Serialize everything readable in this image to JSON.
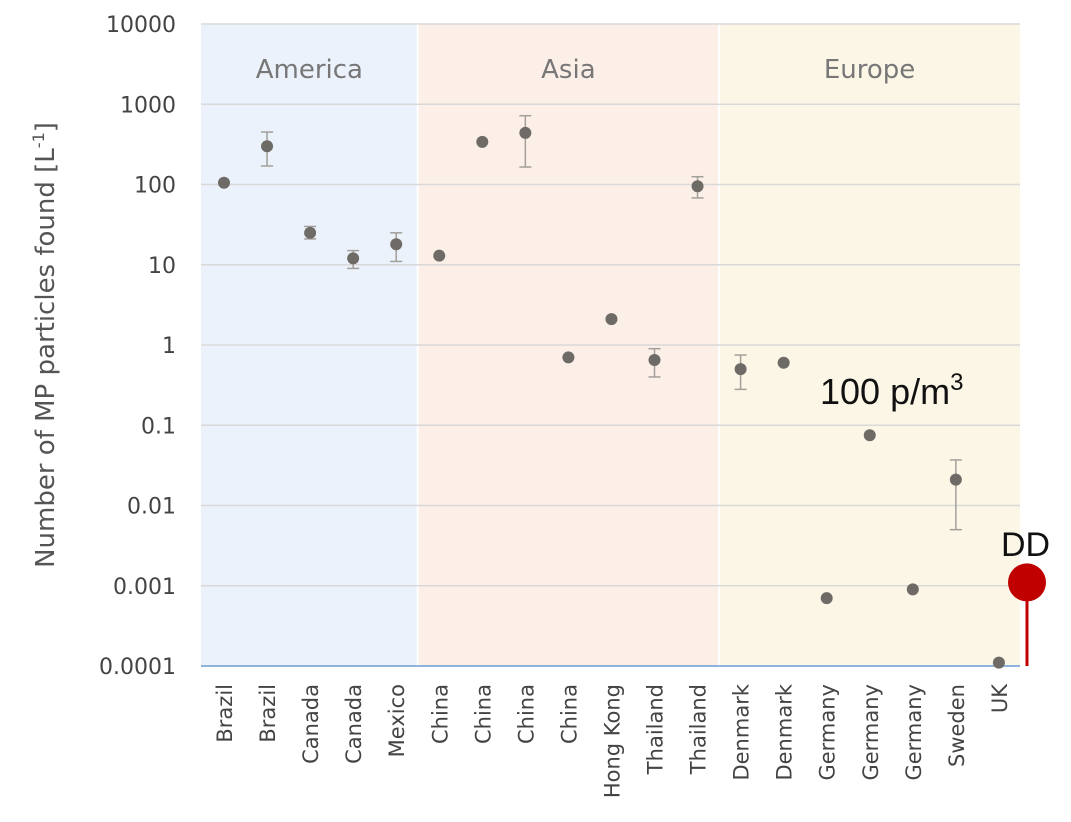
{
  "chart_data": {
    "type": "scatter",
    "title": "",
    "ylabel": "Number of MP particles found [L",
    "ylabel_sup": "-1",
    "ylabel_end": "]",
    "yscale": "log",
    "ylim": [
      0.0001,
      10000
    ],
    "yticks": [
      "10000",
      "1000",
      "100",
      "10",
      "1",
      "0.1",
      "0.01",
      "0.001",
      "0.0001"
    ],
    "ytick_values": [
      10000,
      1000,
      100,
      10,
      1,
      0.1,
      0.01,
      0.001,
      0.0001
    ],
    "grid": true,
    "regions": [
      {
        "name": "America",
        "start": 0,
        "end": 4,
        "color": "#ebf2fb"
      },
      {
        "name": "Asia",
        "start": 5,
        "end": 11,
        "color": "#fcefe7"
      },
      {
        "name": "Europe",
        "start": 12,
        "end": 18,
        "color": "#fcf6e6"
      }
    ],
    "categories": [
      "Brazil",
      "Brazil",
      "Canada",
      "Canada",
      "Mexico",
      "China",
      "China",
      "China",
      "China",
      "Hong Kong",
      "Thailand",
      "Thailand",
      "Denmark",
      "Denmark",
      "Germany",
      "Germany",
      "Germany",
      "Sweden",
      "UK"
    ],
    "values": [
      105,
      300,
      25,
      12,
      18,
      13,
      340,
      440,
      0.7,
      2.1,
      0.65,
      95,
      0.5,
      0.6,
      0.0007,
      0.075,
      0.0009,
      0.021,
      0.00011
    ],
    "error_low": [
      null,
      170,
      21,
      9,
      11,
      null,
      null,
      165,
      null,
      null,
      0.4,
      68,
      0.28,
      null,
      null,
      null,
      null,
      0.005,
      null
    ],
    "error_high": [
      null,
      450,
      30,
      15,
      25,
      null,
      null,
      720,
      null,
      null,
      0.9,
      125,
      0.75,
      null,
      null,
      null,
      null,
      0.037,
      null
    ],
    "marker_color": "#6e6a66",
    "annotations": [
      {
        "text": "100 p/m",
        "sup": "3"
      },
      {
        "text": "DD",
        "value": 0.0011,
        "color": "#c00000"
      }
    ]
  }
}
